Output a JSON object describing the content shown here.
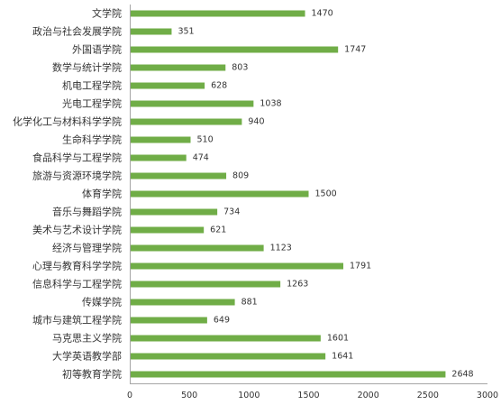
{
  "colors": {
    "bar": "#70AD47",
    "axis": "#A6A6A6",
    "text": "#333333",
    "background": "#FFFFFF"
  },
  "chart_data": {
    "type": "bar",
    "orientation": "horizontal",
    "title": "",
    "xlabel": "",
    "ylabel": "",
    "xlim": [
      0,
      3000
    ],
    "x_ticks": [
      0,
      500,
      1000,
      1500,
      2000,
      2500,
      3000
    ],
    "grid": false,
    "legend": "none",
    "categories": [
      "文学院",
      "政治与社会发展学院",
      "外国语学院",
      "数学与统计学院",
      "机电工程学院",
      "光电工程学院",
      "化学化工与材料科学学院",
      "生命科学学院",
      "食品科学与工程学院",
      "旅游与资源环境学院",
      "体育学院",
      "音乐与舞蹈学院",
      "美术与艺术设计学院",
      "经济与管理学院",
      "心理与教育科学学院",
      "信息科学与工程学院",
      "传媒学院",
      "城市与建筑工程学院",
      "马克思主义学院",
      "大学英语教学部",
      "初等教育学院"
    ],
    "values": [
      1470,
      351,
      1747,
      803,
      628,
      1038,
      940,
      510,
      474,
      809,
      1500,
      734,
      621,
      1123,
      1791,
      1263,
      881,
      649,
      1601,
      1641,
      2648
    ]
  }
}
